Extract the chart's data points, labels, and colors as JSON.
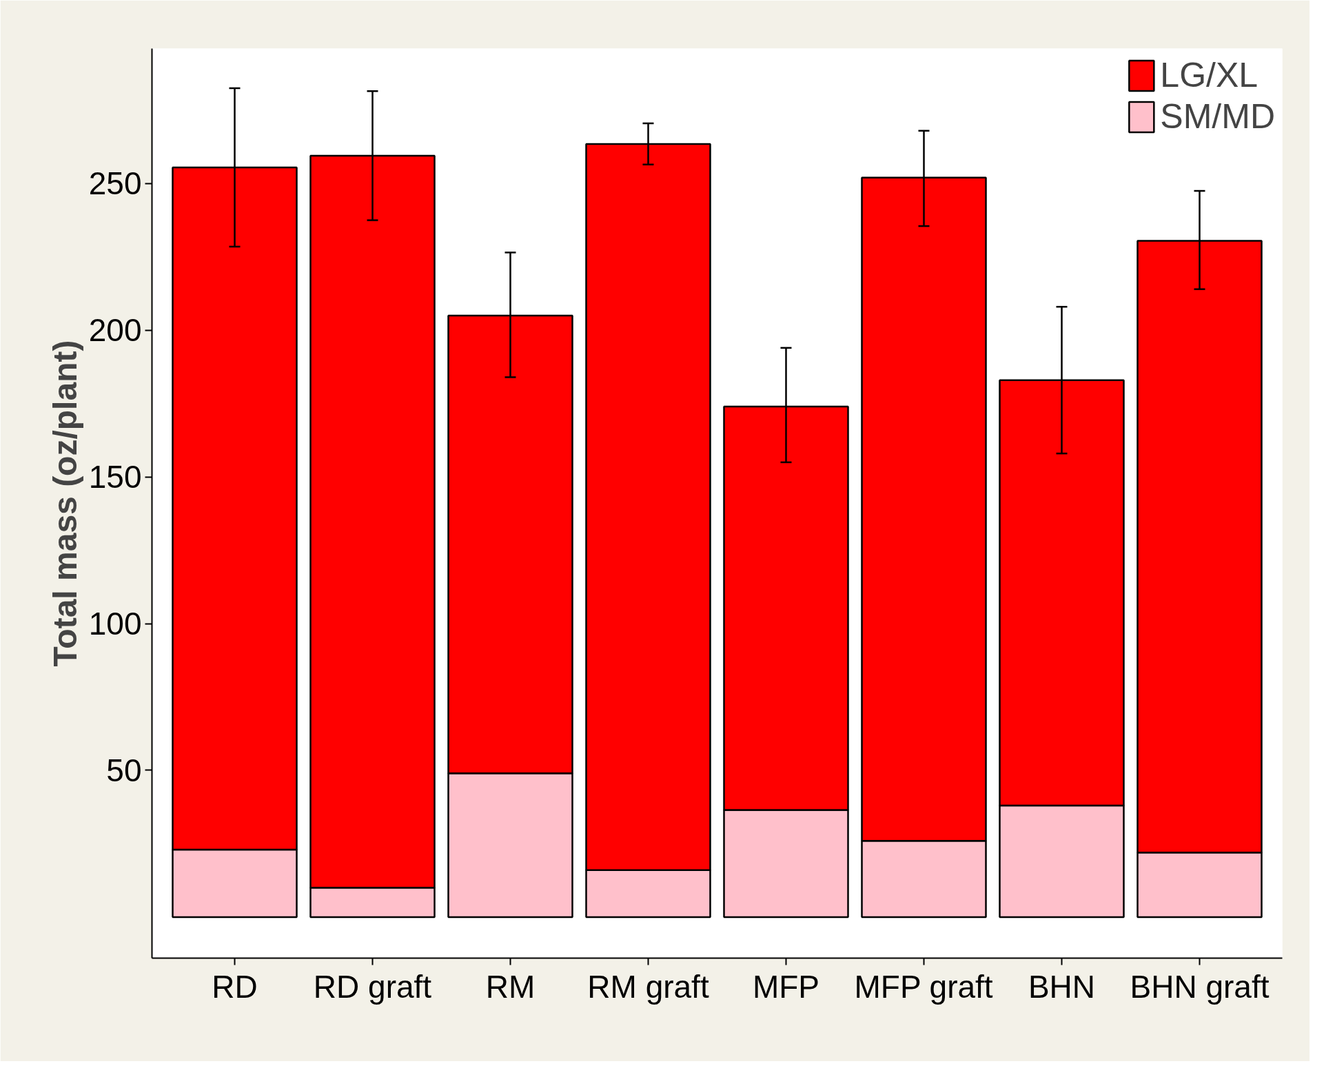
{
  "chart_data": {
    "type": "bar",
    "stacked": true,
    "ylabel": "Total mass (oz/plant)",
    "categories": [
      "RD",
      "RD graft",
      "RM",
      "RM graft",
      "MFP",
      "MFP graft",
      "BHN",
      "BHN graft"
    ],
    "series": [
      {
        "name": "SM/MD",
        "color": "#ffc0cb",
        "values": [
          23,
          10,
          49,
          16,
          36.5,
          26,
          38,
          22
        ]
      },
      {
        "name": "LG/XL",
        "color": "#ff0000",
        "values": [
          232.5,
          249.5,
          156,
          247.5,
          137.5,
          226,
          145,
          208.5
        ],
        "errors": [
          [
            228.5,
            282.5
          ],
          [
            237.5,
            281.5
          ],
          [
            184,
            226.5
          ],
          [
            256.5,
            270.5
          ],
          [
            155,
            194
          ],
          [
            235.5,
            268
          ],
          [
            158,
            208
          ],
          [
            214,
            247.5
          ]
        ]
      }
    ],
    "ylim": [
      -14,
      296
    ],
    "yticks": [
      50,
      100,
      150,
      200,
      250
    ],
    "grid": false,
    "legend": "top right"
  }
}
